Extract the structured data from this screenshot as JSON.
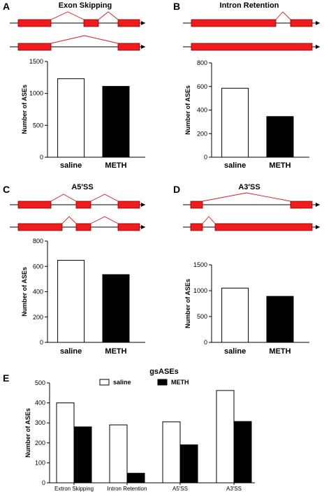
{
  "panels": {
    "A": {
      "letter": "A",
      "title": "Exon Skipping"
    },
    "B": {
      "letter": "B",
      "title": "Intron Retention"
    },
    "C": {
      "letter": "C",
      "title": "A5′SS"
    },
    "D": {
      "letter": "D",
      "title": "A3′SS"
    },
    "E": {
      "letter": "E",
      "title": "gsASEs"
    }
  },
  "colors": {
    "exon": "#ee1c1c",
    "splice_line": "#d81b1b",
    "saline": "#ffffff",
    "METH": "#000000"
  },
  "chart_data": [
    {
      "id": "A",
      "type": "bar",
      "categories": [
        "saline",
        "METH"
      ],
      "values": [
        1230,
        1110
      ],
      "ylabel": "Number of ASEs",
      "ylim": [
        0,
        1500
      ],
      "yticks": [
        0,
        500,
        1000,
        1500
      ],
      "grid": false
    },
    {
      "id": "B",
      "type": "bar",
      "categories": [
        "saline",
        "METH"
      ],
      "values": [
        585,
        345
      ],
      "ylabel": "Number of ASEs",
      "ylim": [
        0,
        800
      ],
      "yticks": [
        0,
        200,
        400,
        600,
        800
      ],
      "grid": false
    },
    {
      "id": "C",
      "type": "bar",
      "categories": [
        "saline",
        "METH"
      ],
      "values": [
        648,
        535
      ],
      "ylabel": "Number of ASEs",
      "ylim": [
        0,
        800
      ],
      "yticks": [
        0,
        200,
        400,
        600,
        800
      ],
      "grid": false
    },
    {
      "id": "D",
      "type": "bar",
      "categories": [
        "saline",
        "METH"
      ],
      "values": [
        1050,
        890
      ],
      "ylabel": "Number of ASEs",
      "ylim": [
        0,
        1500
      ],
      "yticks": [
        0,
        500,
        1000,
        1500
      ],
      "grid": false
    },
    {
      "id": "E",
      "type": "bar",
      "title": "gsASEs",
      "categories": [
        "Extron Skipping",
        "Intron Retention",
        "A5′SS",
        "A3′SS"
      ],
      "series": [
        {
          "name": "saline",
          "values": [
            400,
            290,
            305,
            462
          ]
        },
        {
          "name": "METH",
          "values": [
            280,
            48,
            190,
            307
          ]
        }
      ],
      "ylabel": "Number of ASEs",
      "ylim": [
        0,
        500
      ],
      "yticks": [
        0,
        100,
        200,
        300,
        400,
        500
      ],
      "legend": "top",
      "grid": false
    }
  ]
}
